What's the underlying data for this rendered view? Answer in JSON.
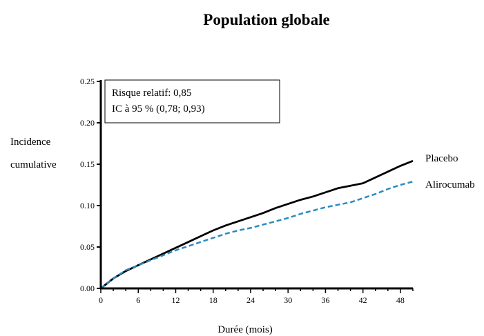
{
  "chart_data": {
    "type": "line",
    "title": "Population globale",
    "xlabel": "Durée (mois)",
    "ylabel": [
      "Incidence",
      "cumulative"
    ],
    "xlim": [
      0,
      50
    ],
    "ylim": [
      0,
      0.25
    ],
    "x_ticks": [
      0,
      6,
      12,
      18,
      24,
      30,
      36,
      42,
      48
    ],
    "y_ticks": [
      "0.00",
      "0.05",
      "0.10",
      "0.15",
      "0.20",
      "0.25"
    ],
    "grid": false,
    "annotation": [
      "Risque relatif: 0,85",
      "IC à 95 % (0,78; 0,93)"
    ],
    "series": [
      {
        "name": "Placebo",
        "color": "#000000",
        "style": "solid",
        "points": [
          [
            0,
            0
          ],
          [
            2,
            0.012
          ],
          [
            4,
            0.021
          ],
          [
            6,
            0.028
          ],
          [
            8,
            0.035
          ],
          [
            10,
            0.042
          ],
          [
            12,
            0.049
          ],
          [
            14,
            0.056
          ],
          [
            16,
            0.063
          ],
          [
            18,
            0.07
          ],
          [
            20,
            0.076
          ],
          [
            22,
            0.081
          ],
          [
            24,
            0.086
          ],
          [
            26,
            0.091
          ],
          [
            28,
            0.097
          ],
          [
            30,
            0.102
          ],
          [
            32,
            0.107
          ],
          [
            34,
            0.111
          ],
          [
            36,
            0.116
          ],
          [
            38,
            0.121
          ],
          [
            40,
            0.124
          ],
          [
            42,
            0.127
          ],
          [
            44,
            0.134
          ],
          [
            46,
            0.141
          ],
          [
            48,
            0.148
          ],
          [
            50,
            0.154
          ]
        ]
      },
      {
        "name": "Alirocumab",
        "color": "#2a8bbf",
        "style": "dashed",
        "points": [
          [
            0,
            0
          ],
          [
            2,
            0.012
          ],
          [
            4,
            0.022
          ],
          [
            6,
            0.028
          ],
          [
            8,
            0.034
          ],
          [
            10,
            0.04
          ],
          [
            12,
            0.046
          ],
          [
            14,
            0.051
          ],
          [
            16,
            0.056
          ],
          [
            18,
            0.061
          ],
          [
            20,
            0.066
          ],
          [
            22,
            0.07
          ],
          [
            24,
            0.073
          ],
          [
            26,
            0.077
          ],
          [
            28,
            0.081
          ],
          [
            30,
            0.085
          ],
          [
            32,
            0.09
          ],
          [
            34,
            0.094
          ],
          [
            36,
            0.098
          ],
          [
            38,
            0.101
          ],
          [
            40,
            0.104
          ],
          [
            42,
            0.109
          ],
          [
            44,
            0.114
          ],
          [
            46,
            0.12
          ],
          [
            48,
            0.125
          ],
          [
            50,
            0.129
          ]
        ]
      }
    ]
  }
}
